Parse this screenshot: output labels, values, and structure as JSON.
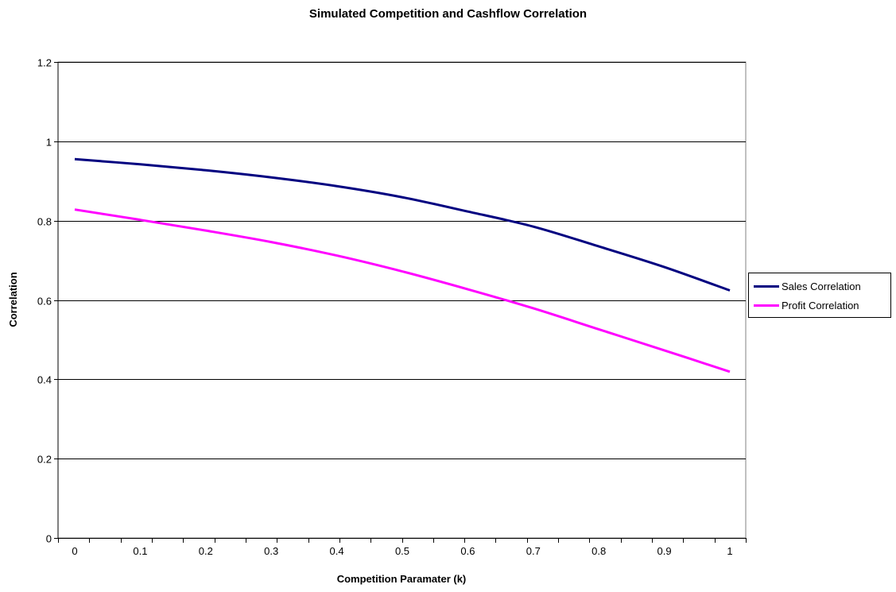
{
  "chart_data": {
    "type": "line",
    "title": "Simulated Competition and Cashflow Correlation",
    "xlabel": "Competition Paramater (k)",
    "ylabel": "Correlation",
    "xlim": [
      0,
      1
    ],
    "ylim": [
      0,
      1.2
    ],
    "x_ticks": [
      "0",
      "0.1",
      "0.2",
      "0.3",
      "0.4",
      "0.5",
      "0.6",
      "0.7",
      "0.8",
      "0.9",
      "1"
    ],
    "y_ticks": [
      "0",
      "0.2",
      "0.4",
      "0.6",
      "0.8",
      "1",
      "1.2"
    ],
    "grid": "horizontal",
    "legend_position": "right",
    "x": [
      0,
      0.1,
      0.2,
      0.3,
      0.4,
      0.5,
      0.6,
      0.7,
      0.8,
      0.9,
      1
    ],
    "series": [
      {
        "name": "Sales Correlation",
        "color": "#000080",
        "values": [
          0.955,
          0.942,
          0.927,
          0.909,
          0.887,
          0.859,
          0.823,
          0.785,
          0.735,
          0.683,
          0.624
        ]
      },
      {
        "name": "Profit Correlation",
        "color": "#FF00FF",
        "values": [
          0.828,
          0.802,
          0.775,
          0.746,
          0.712,
          0.672,
          0.627,
          0.579,
          0.526,
          0.473,
          0.419
        ]
      }
    ]
  }
}
